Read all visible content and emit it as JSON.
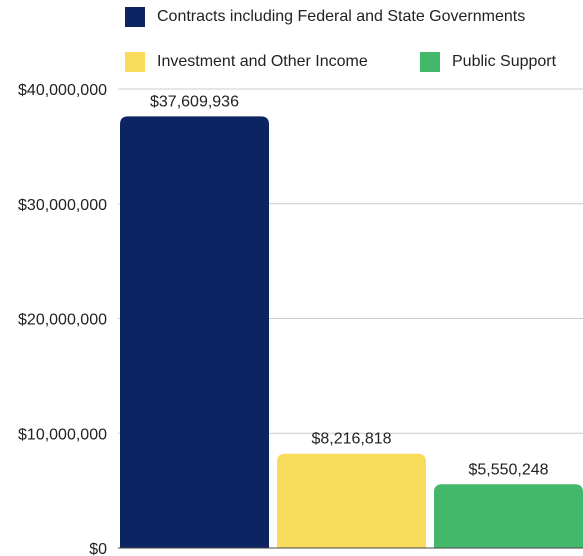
{
  "chart_data": {
    "type": "bar",
    "categories": [
      "Contracts including Federal and State Governments",
      "Investment and Other Income",
      "Public Support"
    ],
    "values": [
      37609936,
      8216818,
      5550248
    ],
    "value_labels": [
      "$37,609,936",
      "$8,216,818",
      "$5,550,248"
    ],
    "colors": [
      "#0c2461",
      "#f9dc5c",
      "#44b86a"
    ],
    "ylim": [
      0,
      40000000
    ],
    "y_ticks": [
      0,
      10000000,
      20000000,
      30000000,
      40000000
    ],
    "y_tick_labels": [
      "$0",
      "$10,000,000",
      "$20,000,000",
      "$30,000,000",
      "$40,000,000"
    ],
    "grid": true,
    "legend_position": "top",
    "title": "",
    "xlabel": "",
    "ylabel": ""
  },
  "legend": {
    "items": [
      {
        "label": "Contracts including Federal and State Governments",
        "color": "#0c2461"
      },
      {
        "label": "Investment and Other Income",
        "color": "#f9dc5c"
      },
      {
        "label": "Public Support",
        "color": "#44b86a"
      }
    ]
  }
}
